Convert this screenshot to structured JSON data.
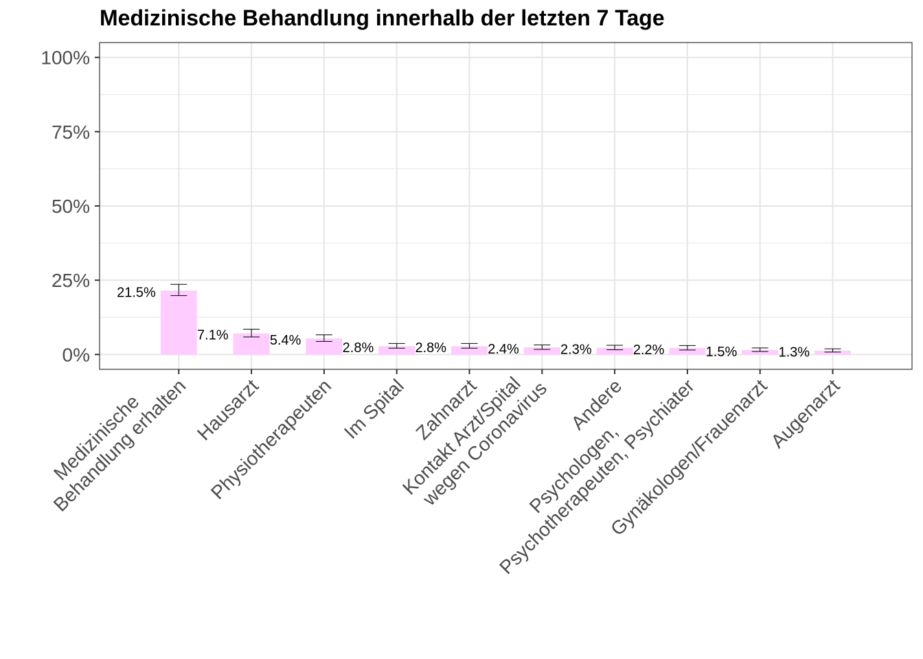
{
  "chart_data": {
    "type": "bar",
    "title": "Medizinische Behandlung innerhalb der letzten 7 Tage",
    "xlabel": "",
    "ylabel": "",
    "ylim": [
      -0.05,
      1.05
    ],
    "yticks": [
      0,
      0.25,
      0.5,
      0.75,
      1.0
    ],
    "ytick_labels": [
      "0%",
      "25%",
      "50%",
      "75%",
      "100%"
    ],
    "grid": true,
    "categories": [
      [
        "Medizinische",
        "Behandlung erhalten"
      ],
      [
        "Hausarzt"
      ],
      [
        "Physiotherapeuten"
      ],
      [
        "Im Spital"
      ],
      [
        "Zahnarzt"
      ],
      [
        "Kontakt Arzt/Spital",
        "wegen Coronavirus"
      ],
      [
        "Andere"
      ],
      [
        "Psychologen,",
        "Psychotherapeuten, Psychiater"
      ],
      [
        "Gynäkologen/Frauenarzt"
      ],
      [
        "Augenarzt"
      ]
    ],
    "values": [
      0.215,
      0.071,
      0.054,
      0.028,
      0.028,
      0.024,
      0.023,
      0.022,
      0.015,
      0.013
    ],
    "error_low": [
      0.198,
      0.059,
      0.044,
      0.021,
      0.021,
      0.017,
      0.016,
      0.015,
      0.01,
      0.008
    ],
    "error_high": [
      0.236,
      0.085,
      0.066,
      0.037,
      0.037,
      0.032,
      0.031,
      0.03,
      0.022,
      0.019
    ],
    "value_labels": [
      "21.5%",
      "7.1%",
      "5.4%",
      "2.8%",
      "2.8%",
      "2.4%",
      "2.3%",
      "2.2%",
      "1.5%",
      "1.3%"
    ],
    "colors": {
      "bar": "#ffccff",
      "error": "#000000",
      "grid": "#e5e5e5",
      "border": "#333333",
      "tick_text": "#4d4d4d"
    }
  }
}
